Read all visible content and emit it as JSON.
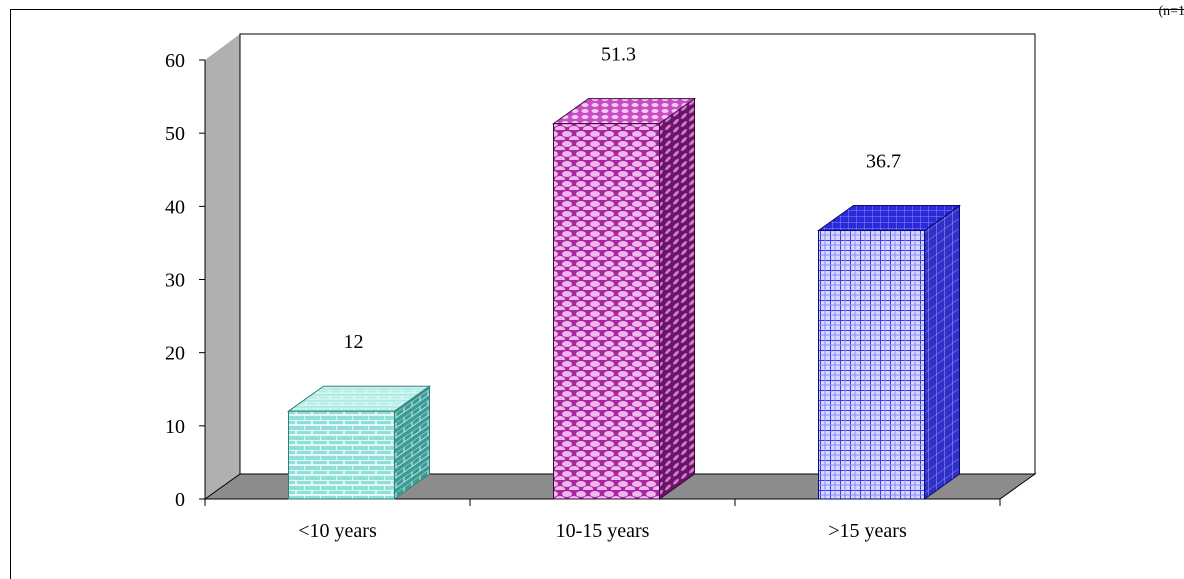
{
  "corner_text": "(n=1",
  "chart_data": {
    "type": "bar",
    "categories": [
      "<10 years",
      "10-15 years",
      ">15 years"
    ],
    "values": [
      12,
      51.3,
      36.7
    ],
    "data_labels": [
      "12",
      "51.3",
      "36.7"
    ],
    "title": "",
    "xlabel": "",
    "ylabel": "",
    "ylim": [
      0,
      60
    ],
    "yticks": [
      0,
      10,
      20,
      30,
      40,
      50,
      60
    ],
    "grid": false,
    "legend": "none",
    "style": "3d-column",
    "colors": {
      "bar_fills": [
        "#7fd6cf",
        "#b03ab0",
        "#5050f0"
      ],
      "bar_tops": [
        "#9fe6e0",
        "#d060d0",
        "#3a3ae0"
      ],
      "bar_sides": [
        "#3fa6a0",
        "#7a1a7a",
        "#2a2ab0"
      ],
      "walls": "#b0b0b0",
      "wall_dark": "#808080"
    }
  }
}
